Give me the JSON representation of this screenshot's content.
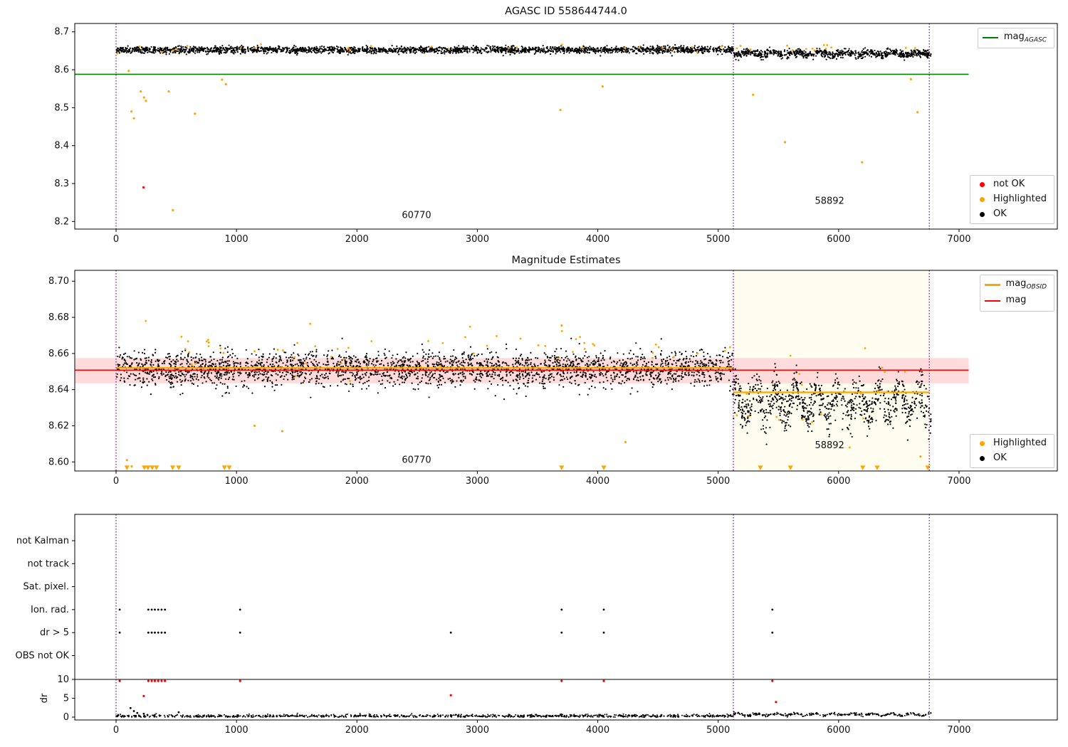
{
  "colors": {
    "ok": "#000000",
    "highlighted": "#ffa500",
    "not_ok": "#ff0000",
    "vline": "#800080",
    "agasc": "#008000",
    "band": "#ffdbdb",
    "span": "#fffcf0"
  },
  "chart_data": [
    {
      "type": "scatter",
      "title": "AGASC ID 558644744.0",
      "xlim": [
        -343,
        7816
      ],
      "ylim": [
        8.18,
        8.722
      ],
      "xticks": [
        0,
        1000,
        2000,
        3000,
        4000,
        5000,
        6000,
        7000
      ],
      "yticks": [
        8.2,
        8.3,
        8.4,
        8.5,
        8.6,
        8.7
      ],
      "ytick_decimals": 1,
      "vlines": [
        0,
        5126,
        6753
      ],
      "hline": {
        "y": 8.588,
        "x0": -343,
        "x1": 7080,
        "color": "#008000"
      },
      "annotations": [
        {
          "text": "60770",
          "x": 2495,
          "y": 8.209
        },
        {
          "text": "58892",
          "x": 5925,
          "y": 8.247
        }
      ],
      "clusters": [
        {
          "color": "#000000",
          "n": 2300,
          "x0": 0,
          "x1": 5126,
          "mean": 8.6525,
          "std": 0.0045,
          "r": 1.1,
          "seed": 1
        },
        {
          "color": "#000000",
          "n": 800,
          "x0": 5126,
          "x1": 6770,
          "mean": 8.6425,
          "std": 0.005,
          "wobble_amp": 0.0035,
          "wobble_period": 200,
          "r": 1.1,
          "seed": 2
        },
        {
          "color": "#ffa500",
          "n": 40,
          "x0": 0,
          "x1": 6700,
          "mean": 8.658,
          "std": 0.005,
          "r": 1.4,
          "seed": 3
        }
      ],
      "points": [
        {
          "x": 105,
          "y": 8.597,
          "color": "#ffa500",
          "r": 1.6
        },
        {
          "x": 128,
          "y": 8.49,
          "color": "#ffa500",
          "r": 1.6
        },
        {
          "x": 148,
          "y": 8.472,
          "color": "#ffa500",
          "r": 1.6
        },
        {
          "x": 205,
          "y": 8.543,
          "color": "#ffa500",
          "r": 1.6
        },
        {
          "x": 232,
          "y": 8.527,
          "color": "#ffa500",
          "r": 1.6
        },
        {
          "x": 248,
          "y": 8.518,
          "color": "#ffa500",
          "r": 1.6
        },
        {
          "x": 438,
          "y": 8.543,
          "color": "#ffa500",
          "r": 1.6
        },
        {
          "x": 472,
          "y": 8.23,
          "color": "#ffa500",
          "r": 1.6
        },
        {
          "x": 655,
          "y": 8.484,
          "color": "#ffa500",
          "r": 1.6
        },
        {
          "x": 880,
          "y": 8.574,
          "color": "#ffa500",
          "r": 1.6
        },
        {
          "x": 912,
          "y": 8.562,
          "color": "#ffa500",
          "r": 1.6
        },
        {
          "x": 3690,
          "y": 8.494,
          "color": "#ffa500",
          "r": 1.6
        },
        {
          "x": 4040,
          "y": 8.556,
          "color": "#ffa500",
          "r": 1.6
        },
        {
          "x": 5290,
          "y": 8.534,
          "color": "#ffa500",
          "r": 1.6
        },
        {
          "x": 5555,
          "y": 8.409,
          "color": "#ffa500",
          "r": 1.6
        },
        {
          "x": 6195,
          "y": 8.356,
          "color": "#ffa500",
          "r": 1.6
        },
        {
          "x": 6600,
          "y": 8.575,
          "color": "#ffa500",
          "r": 1.6
        },
        {
          "x": 6655,
          "y": 8.488,
          "color": "#ffa500",
          "r": 1.6
        },
        {
          "x": 228,
          "y": 8.29,
          "color": "#ff0000",
          "r": 1.6
        }
      ],
      "legend_lines": [
        {
          "label_main": "mag",
          "label_sub": "AGASC"
        }
      ],
      "legend_markers": [
        {
          "label": "not OK"
        },
        {
          "label": "Highlighted"
        },
        {
          "label": "OK"
        }
      ]
    },
    {
      "type": "scatter",
      "title": "Magnitude Estimates",
      "xlim": [
        -343,
        7816
      ],
      "ylim": [
        8.595,
        8.706
      ],
      "xticks": [
        0,
        1000,
        2000,
        3000,
        4000,
        5000,
        6000,
        7000
      ],
      "yticks": [
        8.6,
        8.62,
        8.64,
        8.66,
        8.68,
        8.7
      ],
      "ytick_decimals": 2,
      "vlines": [
        0,
        5126,
        6753
      ],
      "span": {
        "x0": 5126,
        "x1": 6753,
        "color": "#fffcf0"
      },
      "band": {
        "x0": -343,
        "x1": 7080,
        "y0": 8.6435,
        "y1": 8.6575,
        "color": "#ffdbdb"
      },
      "mag_line": {
        "x0": -343,
        "x1": 7080,
        "y": 8.6508
      },
      "obsid_lines": [
        {
          "x0": 0,
          "x1": 5126,
          "y": 8.652
        },
        {
          "x0": 5126,
          "x1": 6753,
          "y": 8.6385
        }
      ],
      "triangle_y": 8.5968,
      "down_triangles": [
        90,
        235,
        265,
        300,
        335,
        470,
        520,
        900,
        940,
        3700,
        4050,
        5350,
        5600,
        6200,
        6320,
        6740
      ],
      "annotations": [
        {
          "text": "60770",
          "x": 2495,
          "y": 8.5995
        },
        {
          "text": "58892",
          "x": 5925,
          "y": 8.6075
        }
      ],
      "clusters": [
        {
          "color": "#000000",
          "n": 2700,
          "x0": 0,
          "x1": 5126,
          "mean": 8.6515,
          "std": 0.0048,
          "r": 1.1,
          "seed": 11
        },
        {
          "color": "#000000",
          "n": 900,
          "x0": 5126,
          "x1": 6770,
          "mean": 8.633,
          "std": 0.0055,
          "wobble_amp": 0.0065,
          "wobble_period": 170,
          "r": 1.1,
          "seed": 12
        },
        {
          "color": "#ffa500",
          "n": 60,
          "x0": 0,
          "x1": 5120,
          "mean": 8.66,
          "std": 0.007,
          "r": 1.4,
          "seed": 13
        },
        {
          "color": "#ffa500",
          "n": 20,
          "x0": 5126,
          "x1": 6753,
          "mean": 8.638,
          "std": 0.009,
          "r": 1.4,
          "seed": 14
        }
      ],
      "points": [
        {
          "x": 90,
          "y": 8.601,
          "color": "#ffa500",
          "r": 1.6
        },
        {
          "x": 130,
          "y": 8.5975,
          "color": "#ffa500",
          "r": 1.6
        },
        {
          "x": 1150,
          "y": 8.62,
          "color": "#ffa500",
          "r": 1.6
        },
        {
          "x": 1380,
          "y": 8.617,
          "color": "#ffa500",
          "r": 1.6
        },
        {
          "x": 4230,
          "y": 8.611,
          "color": "#ffa500",
          "r": 1.6
        },
        {
          "x": 3700,
          "y": 8.6755,
          "color": "#ffa500",
          "r": 1.6
        },
        {
          "x": 6680,
          "y": 8.603,
          "color": "#ffa500",
          "r": 1.6
        }
      ],
      "legend_lines": [
        {
          "label_main": "mag",
          "label_sub": "OBSID"
        },
        {
          "label_main": "mag",
          "label_sub": ""
        }
      ],
      "legend_markers": [
        {
          "label": "Highlighted"
        },
        {
          "label": "OK"
        }
      ]
    },
    {
      "type": "scatter",
      "title": "",
      "xlim": [
        -343,
        7816
      ],
      "xticks": [
        0,
        1000,
        2000,
        3000,
        4000,
        5000,
        6000,
        7000
      ],
      "vlines": [
        0,
        5126,
        6753
      ],
      "categories": [
        "not Kalman",
        "not track",
        "Sat. pixel.",
        "Ion. rad.",
        "dr > 5",
        "OBS not OK"
      ],
      "flag_points": {
        "Ion. rad.": [
          30,
          268,
          296,
          322,
          350,
          378,
          406,
          1030,
          3700,
          4050,
          5450
        ],
        "dr > 5": [
          30,
          268,
          296,
          322,
          350,
          378,
          406,
          1030,
          2780,
          3700,
          4050,
          5450
        ]
      },
      "dr_axis": {
        "label": "dr",
        "ticks": [
          0,
          5,
          10
        ],
        "cap_line": 10
      },
      "dr_red_points": [
        {
          "x": 30,
          "v": 10
        },
        {
          "x": 230,
          "v": 5.6
        },
        {
          "x": 268,
          "v": 10
        },
        {
          "x": 296,
          "v": 10
        },
        {
          "x": 322,
          "v": 10
        },
        {
          "x": 350,
          "v": 10
        },
        {
          "x": 378,
          "v": 10
        },
        {
          "x": 406,
          "v": 10
        },
        {
          "x": 1030,
          "v": 10
        },
        {
          "x": 2780,
          "v": 5.8
        },
        {
          "x": 3700,
          "v": 10
        },
        {
          "x": 4050,
          "v": 10
        },
        {
          "x": 5450,
          "v": 10
        },
        {
          "x": 5480,
          "v": 4.0
        }
      ],
      "dr_black_points": [
        {
          "x": 120,
          "v": 2.4
        },
        {
          "x": 148,
          "v": 1.6
        },
        {
          "x": 176,
          "v": 1.1
        },
        {
          "x": 230,
          "v": 0.9
        },
        {
          "x": 520,
          "v": 1.3
        }
      ],
      "dr_baseline": {
        "n": 1200,
        "x0": 0,
        "x1": 6770,
        "mean": 0.3,
        "std": 0.2,
        "elevated_after": 5126,
        "elev_base": 0.45,
        "elev_amp": 0.4,
        "elev_period": 160,
        "elev_std": 0.18,
        "seed": 21
      }
    }
  ]
}
